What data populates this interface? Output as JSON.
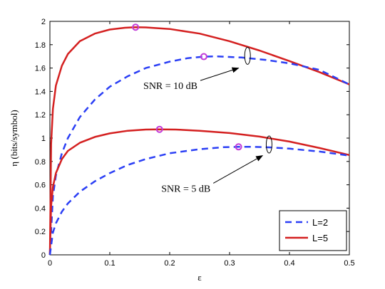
{
  "chart_data": {
    "type": "line",
    "xlabel": "ε",
    "ylabel": "η (bits/symbol)",
    "xlim": [
      0,
      0.5
    ],
    "ylim": [
      0,
      2
    ],
    "xticks": [
      "0",
      "0.1",
      "0.2",
      "0.3",
      "0.4",
      "0.5"
    ],
    "yticks": [
      "0",
      "0.2",
      "0.4",
      "0.6",
      "0.8",
      "1",
      "1.2",
      "1.4",
      "1.6",
      "1.8",
      "2"
    ],
    "grid": false,
    "legend_position": "bottom-right",
    "legend": [
      {
        "label": "L=2",
        "color": "#2b3ff5",
        "style": "dashed"
      },
      {
        "label": "L=5",
        "color": "#d42020",
        "style": "solid"
      }
    ],
    "series": [
      {
        "name": "L=5",
        "group": "SNR = 10 dB",
        "color": "#d42020",
        "style": "solid",
        "points": [
          [
            0,
            0
          ],
          [
            0.002,
            0.95
          ],
          [
            0.005,
            1.25
          ],
          [
            0.01,
            1.45
          ],
          [
            0.02,
            1.62
          ],
          [
            0.03,
            1.72
          ],
          [
            0.05,
            1.83
          ],
          [
            0.075,
            1.895
          ],
          [
            0.1,
            1.93
          ],
          [
            0.125,
            1.945
          ],
          [
            0.143,
            1.95
          ],
          [
            0.16,
            1.948
          ],
          [
            0.2,
            1.935
          ],
          [
            0.25,
            1.895
          ],
          [
            0.3,
            1.83
          ],
          [
            0.35,
            1.75
          ],
          [
            0.4,
            1.66
          ],
          [
            0.45,
            1.565
          ],
          [
            0.5,
            1.46
          ]
        ],
        "marker": [
          0.143,
          1.95
        ]
      },
      {
        "name": "L=2",
        "group": "SNR = 10 dB",
        "color": "#2b3ff5",
        "style": "dashed",
        "points": [
          [
            0,
            0
          ],
          [
            0.005,
            0.5
          ],
          [
            0.01,
            0.68
          ],
          [
            0.02,
            0.87
          ],
          [
            0.03,
            1.0
          ],
          [
            0.05,
            1.18
          ],
          [
            0.075,
            1.33
          ],
          [
            0.1,
            1.44
          ],
          [
            0.13,
            1.53
          ],
          [
            0.16,
            1.6
          ],
          [
            0.2,
            1.655
          ],
          [
            0.23,
            1.685
          ],
          [
            0.257,
            1.698
          ],
          [
            0.28,
            1.7
          ],
          [
            0.32,
            1.69
          ],
          [
            0.36,
            1.67
          ],
          [
            0.4,
            1.64
          ],
          [
            0.45,
            1.585
          ],
          [
            0.5,
            1.46
          ]
        ],
        "marker": [
          0.257,
          1.698
        ]
      },
      {
        "name": "L=5",
        "group": "SNR = 5 dB",
        "color": "#d42020",
        "style": "solid",
        "points": [
          [
            0,
            0
          ],
          [
            0.002,
            0.42
          ],
          [
            0.005,
            0.58
          ],
          [
            0.01,
            0.7
          ],
          [
            0.02,
            0.82
          ],
          [
            0.03,
            0.89
          ],
          [
            0.05,
            0.96
          ],
          [
            0.075,
            1.01
          ],
          [
            0.1,
            1.04
          ],
          [
            0.13,
            1.063
          ],
          [
            0.16,
            1.073
          ],
          [
            0.183,
            1.075
          ],
          [
            0.21,
            1.073
          ],
          [
            0.25,
            1.063
          ],
          [
            0.3,
            1.043
          ],
          [
            0.35,
            1.013
          ],
          [
            0.4,
            0.97
          ],
          [
            0.45,
            0.915
          ],
          [
            0.5,
            0.855
          ]
        ],
        "marker": [
          0.183,
          1.075
        ]
      },
      {
        "name": "L=2",
        "group": "SNR = 5 dB",
        "color": "#2b3ff5",
        "style": "dashed",
        "points": [
          [
            0,
            0
          ],
          [
            0.005,
            0.19
          ],
          [
            0.01,
            0.27
          ],
          [
            0.02,
            0.37
          ],
          [
            0.03,
            0.44
          ],
          [
            0.05,
            0.54
          ],
          [
            0.075,
            0.63
          ],
          [
            0.1,
            0.7
          ],
          [
            0.13,
            0.77
          ],
          [
            0.16,
            0.82
          ],
          [
            0.2,
            0.87
          ],
          [
            0.25,
            0.905
          ],
          [
            0.29,
            0.922
          ],
          [
            0.315,
            0.925
          ],
          [
            0.34,
            0.925
          ],
          [
            0.37,
            0.92
          ],
          [
            0.4,
            0.91
          ],
          [
            0.45,
            0.885
          ],
          [
            0.5,
            0.85
          ]
        ],
        "marker": [
          0.315,
          0.925
        ]
      }
    ],
    "annotations": [
      {
        "text": "SNR = 10 dB",
        "x": 0.156,
        "y": 1.42,
        "arrow_to": [
          0.315,
          1.6
        ],
        "ellipse": [
          0.33,
          1.705
        ]
      },
      {
        "text": "SNR = 5 dB",
        "x": 0.186,
        "y": 0.54,
        "arrow_to": [
          0.355,
          0.85
        ],
        "ellipse": [
          0.366,
          0.945
        ]
      }
    ]
  }
}
